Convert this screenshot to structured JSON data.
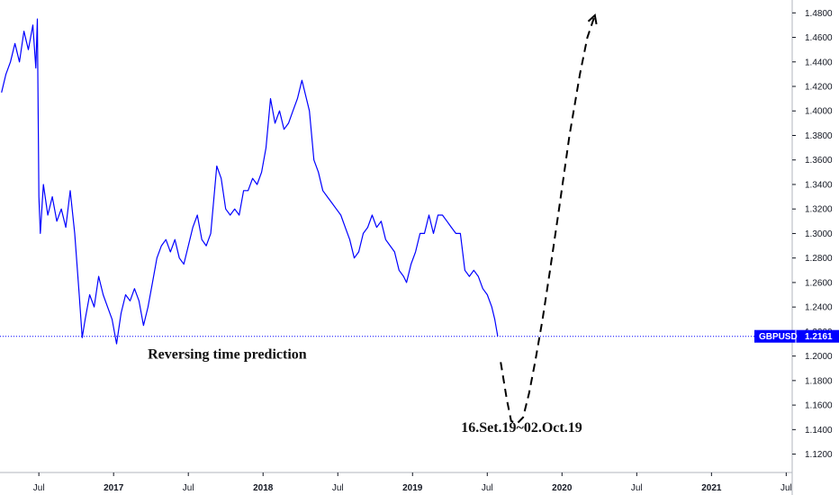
{
  "chart_data": {
    "type": "line",
    "symbol": "GBPUSD",
    "last_price": 1.2161,
    "last_price_label": "1.2161",
    "ylim": [
      1.105,
      1.4905
    ],
    "y_ticks": [
      "1.1200",
      "1.1400",
      "1.1600",
      "1.1800",
      "1.2000",
      "1.2200",
      "1.2400",
      "1.2600",
      "1.2800",
      "1.3000",
      "1.3200",
      "1.3400",
      "1.3600",
      "1.3800",
      "1.4000",
      "1.4200",
      "1.4400",
      "1.4600",
      "1.4800"
    ],
    "x_ticks": [
      {
        "label": "Jul",
        "date": 2016.5,
        "year": false
      },
      {
        "label": "2017",
        "date": 2017.0,
        "year": true
      },
      {
        "label": "Jul",
        "date": 2017.5,
        "year": false
      },
      {
        "label": "2018",
        "date": 2018.0,
        "year": true
      },
      {
        "label": "Jul",
        "date": 2018.5,
        "year": false
      },
      {
        "label": "2019",
        "date": 2019.0,
        "year": true
      },
      {
        "label": "Jul",
        "date": 2019.5,
        "year": false
      },
      {
        "label": "2020",
        "date": 2020.0,
        "year": true
      },
      {
        "label": "Jul",
        "date": 2020.5,
        "year": false
      },
      {
        "label": "2021",
        "date": 2021.0,
        "year": true
      },
      {
        "label": "Jul",
        "date": 2021.5,
        "year": false
      }
    ],
    "xlim": [
      2016.24,
      2021.54
    ],
    "series": [
      {
        "name": "GBPUSD",
        "color": "#0000ff",
        "points": [
          [
            2016.25,
            1.415
          ],
          [
            2016.28,
            1.43
          ],
          [
            2016.31,
            1.44
          ],
          [
            2016.34,
            1.455
          ],
          [
            2016.37,
            1.44
          ],
          [
            2016.4,
            1.465
          ],
          [
            2016.43,
            1.45
          ],
          [
            2016.46,
            1.47
          ],
          [
            2016.48,
            1.435
          ],
          [
            2016.49,
            1.475
          ],
          [
            2016.5,
            1.33
          ],
          [
            2016.51,
            1.3
          ],
          [
            2016.53,
            1.34
          ],
          [
            2016.56,
            1.315
          ],
          [
            2016.59,
            1.33
          ],
          [
            2016.62,
            1.31
          ],
          [
            2016.65,
            1.32
          ],
          [
            2016.68,
            1.305
          ],
          [
            2016.71,
            1.335
          ],
          [
            2016.74,
            1.3
          ],
          [
            2016.77,
            1.25
          ],
          [
            2016.79,
            1.215
          ],
          [
            2016.81,
            1.23
          ],
          [
            2016.84,
            1.25
          ],
          [
            2016.87,
            1.24
          ],
          [
            2016.9,
            1.265
          ],
          [
            2016.93,
            1.25
          ],
          [
            2016.96,
            1.24
          ],
          [
            2016.99,
            1.23
          ],
          [
            2017.02,
            1.21
          ],
          [
            2017.05,
            1.235
          ],
          [
            2017.08,
            1.25
          ],
          [
            2017.11,
            1.245
          ],
          [
            2017.14,
            1.255
          ],
          [
            2017.17,
            1.245
          ],
          [
            2017.2,
            1.225
          ],
          [
            2017.23,
            1.24
          ],
          [
            2017.26,
            1.26
          ],
          [
            2017.29,
            1.28
          ],
          [
            2017.32,
            1.29
          ],
          [
            2017.35,
            1.295
          ],
          [
            2017.38,
            1.285
          ],
          [
            2017.41,
            1.295
          ],
          [
            2017.44,
            1.28
          ],
          [
            2017.47,
            1.275
          ],
          [
            2017.5,
            1.29
          ],
          [
            2017.53,
            1.305
          ],
          [
            2017.56,
            1.315
          ],
          [
            2017.59,
            1.295
          ],
          [
            2017.62,
            1.29
          ],
          [
            2017.65,
            1.3
          ],
          [
            2017.69,
            1.355
          ],
          [
            2017.72,
            1.345
          ],
          [
            2017.75,
            1.32
          ],
          [
            2017.78,
            1.315
          ],
          [
            2017.81,
            1.32
          ],
          [
            2017.84,
            1.315
          ],
          [
            2017.87,
            1.335
          ],
          [
            2017.9,
            1.335
          ],
          [
            2017.93,
            1.345
          ],
          [
            2017.96,
            1.34
          ],
          [
            2017.99,
            1.35
          ],
          [
            2018.02,
            1.37
          ],
          [
            2018.05,
            1.41
          ],
          [
            2018.08,
            1.39
          ],
          [
            2018.11,
            1.4
          ],
          [
            2018.14,
            1.385
          ],
          [
            2018.17,
            1.39
          ],
          [
            2018.2,
            1.4
          ],
          [
            2018.23,
            1.41
          ],
          [
            2018.26,
            1.425
          ],
          [
            2018.29,
            1.41
          ],
          [
            2018.31,
            1.4
          ],
          [
            2018.34,
            1.36
          ],
          [
            2018.37,
            1.35
          ],
          [
            2018.4,
            1.335
          ],
          [
            2018.43,
            1.33
          ],
          [
            2018.46,
            1.325
          ],
          [
            2018.49,
            1.32
          ],
          [
            2018.52,
            1.315
          ],
          [
            2018.55,
            1.305
          ],
          [
            2018.58,
            1.295
          ],
          [
            2018.61,
            1.28
          ],
          [
            2018.64,
            1.285
          ],
          [
            2018.67,
            1.3
          ],
          [
            2018.7,
            1.305
          ],
          [
            2018.73,
            1.315
          ],
          [
            2018.76,
            1.305
          ],
          [
            2018.79,
            1.31
          ],
          [
            2018.82,
            1.295
          ],
          [
            2018.85,
            1.29
          ],
          [
            2018.88,
            1.285
          ],
          [
            2018.91,
            1.27
          ],
          [
            2018.94,
            1.265
          ],
          [
            2018.96,
            1.26
          ],
          [
            2018.99,
            1.275
          ],
          [
            2019.02,
            1.285
          ],
          [
            2019.05,
            1.3
          ],
          [
            2019.08,
            1.3
          ],
          [
            2019.11,
            1.315
          ],
          [
            2019.14,
            1.3
          ],
          [
            2019.17,
            1.315
          ],
          [
            2019.2,
            1.315
          ],
          [
            2019.23,
            1.31
          ],
          [
            2019.26,
            1.305
          ],
          [
            2019.29,
            1.3
          ],
          [
            2019.32,
            1.3
          ],
          [
            2019.35,
            1.27
          ],
          [
            2019.38,
            1.265
          ],
          [
            2019.41,
            1.27
          ],
          [
            2019.44,
            1.265
          ],
          [
            2019.47,
            1.255
          ],
          [
            2019.5,
            1.25
          ],
          [
            2019.53,
            1.24
          ],
          [
            2019.55,
            1.23
          ],
          [
            2019.57,
            1.2161
          ]
        ]
      },
      {
        "name": "Projection",
        "style": "dashed",
        "color": "#000000",
        "points": [
          [
            2019.59,
            1.195
          ],
          [
            2019.63,
            1.165
          ],
          [
            2019.66,
            1.147
          ],
          [
            2019.7,
            1.145
          ],
          [
            2019.74,
            1.15
          ],
          [
            2019.78,
            1.17
          ],
          [
            2019.82,
            1.195
          ],
          [
            2019.87,
            1.23
          ],
          [
            2019.92,
            1.27
          ],
          [
            2019.98,
            1.32
          ],
          [
            2020.05,
            1.38
          ],
          [
            2020.12,
            1.43
          ],
          [
            2020.17,
            1.46
          ],
          [
            2020.22,
            1.478
          ]
        ]
      }
    ],
    "annotations": [
      {
        "text": "Reversing time prediction",
        "x": 2017.76,
        "y": 1.198
      },
      {
        "text": "16.Set.19~02.Oct.19",
        "x": 2019.73,
        "y": 1.138
      }
    ]
  }
}
